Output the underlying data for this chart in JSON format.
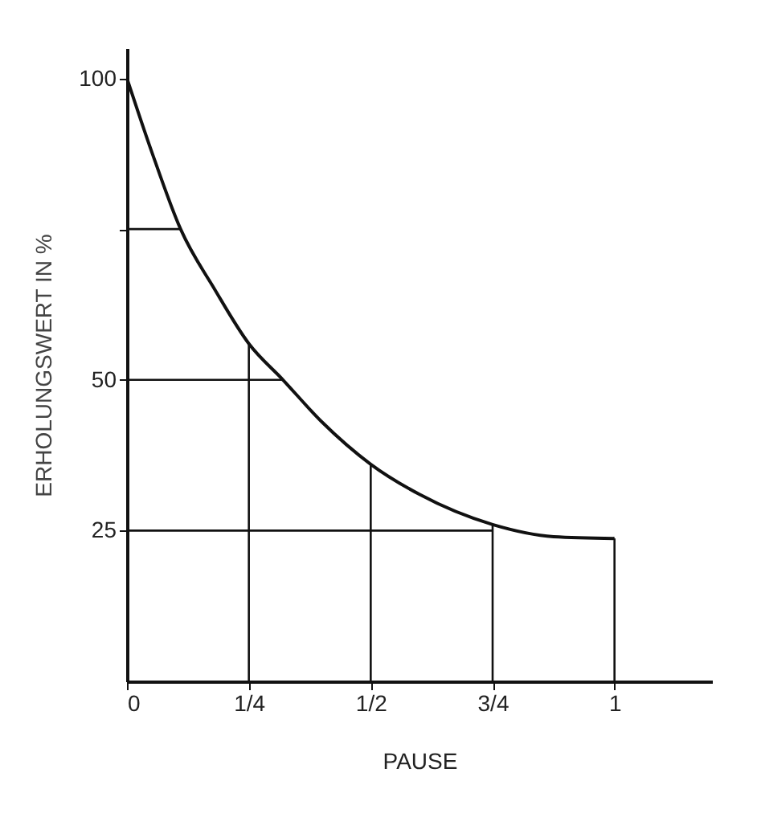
{
  "chart_data": {
    "type": "line",
    "xlabel": "PAUSE",
    "ylabel": "ERHOLUNGSWERT IN %",
    "x": [
      0,
      0.05,
      0.11,
      0.18,
      0.25,
      0.32,
      0.4,
      0.5,
      0.6,
      0.75,
      0.875,
      1
    ],
    "series": [
      {
        "color": "#111111",
        "values": [
          100,
          88,
          75,
          65,
          56,
          50,
          43,
          36,
          31,
          26,
          24,
          23.7
        ]
      },
      {
        "color": "#111111",
        "x": [
          0.25,
          0.25
        ],
        "values": [
          0,
          56
        ]
      },
      {
        "color": "#111111",
        "x": [
          0.5,
          0.5
        ],
        "values": [
          0,
          36
        ]
      },
      {
        "color": "#111111",
        "x": [
          0.75,
          0.75
        ],
        "values": [
          0,
          26
        ]
      },
      {
        "color": "#111111",
        "x": [
          1,
          1
        ],
        "values": [
          0,
          23.7
        ]
      },
      {
        "color": "#111111",
        "x": [
          0,
          0.11
        ],
        "values": [
          75,
          75
        ]
      },
      {
        "color": "#111111",
        "x": [
          0,
          0.32
        ],
        "values": [
          50,
          50
        ]
      },
      {
        "color": "#111111",
        "x": [
          0,
          0.75
        ],
        "values": [
          25,
          25
        ]
      }
    ],
    "xlim": [
      0,
      1.2
    ],
    "ylim": [
      0,
      105
    ],
    "xticks": [
      0,
      {
        "value": 0.25,
        "label": "1/4"
      },
      {
        "value": 0.5,
        "label": "1/2"
      },
      {
        "value": 0.75,
        "label": "3/4"
      },
      1
    ],
    "yticks": [
      25,
      50,
      {
        "value": 75,
        "label": null
      },
      100
    ],
    "marker": "none",
    "line_style": "solid"
  }
}
